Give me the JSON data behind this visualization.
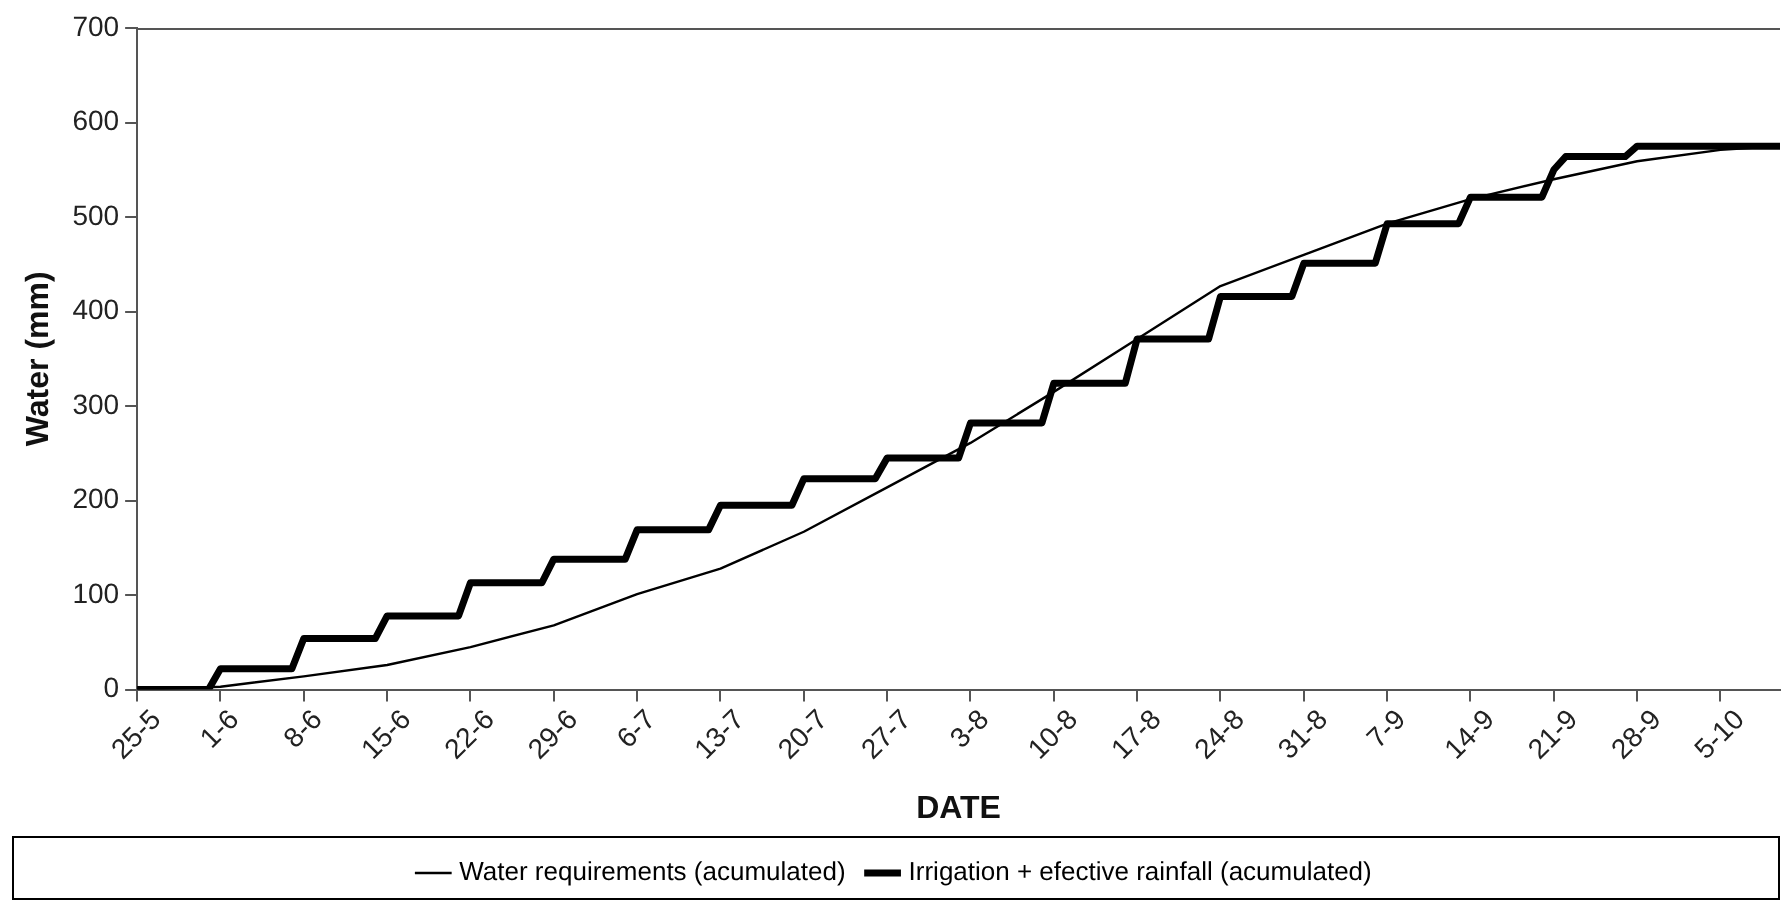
{
  "chart_data": {
    "type": "line",
    "xlabel": "DATE",
    "ylabel": "Water (mm)",
    "xlim": [
      "--05-25",
      "--10-10"
    ],
    "xticks": [
      {
        "value": "--05-25",
        "label": "25-5"
      },
      {
        "value": "--06-01",
        "label": "1-6"
      },
      {
        "value": "--06-08",
        "label": "8-6"
      },
      {
        "value": "--06-15",
        "label": "15-6"
      },
      {
        "value": "--06-22",
        "label": "22-6"
      },
      {
        "value": "--06-29",
        "label": "29-6"
      },
      {
        "value": "--07-06",
        "label": "6-7"
      },
      {
        "value": "--07-13",
        "label": "13-7"
      },
      {
        "value": "--07-20",
        "label": "20-7"
      },
      {
        "value": "--07-27",
        "label": "27-7"
      },
      {
        "value": "--08-03",
        "label": "3-8"
      },
      {
        "value": "--08-10",
        "label": "10-8"
      },
      {
        "value": "--08-17",
        "label": "17-8"
      },
      {
        "value": "--08-24",
        "label": "24-8"
      },
      {
        "value": "--08-31",
        "label": "31-8"
      },
      {
        "value": "--09-07",
        "label": "7-9"
      },
      {
        "value": "--09-14",
        "label": "14-9"
      },
      {
        "value": "--09-21",
        "label": "21-9"
      },
      {
        "value": "--09-28",
        "label": "28-9"
      },
      {
        "value": "--10-05",
        "label": "5-10"
      }
    ],
    "ylim": [
      0,
      700
    ],
    "yticks": [
      0,
      100,
      200,
      300,
      400,
      500,
      600,
      700
    ],
    "grid": false,
    "legend": "bottom",
    "marker": "none",
    "line_style": "solid",
    "series": [
      {
        "name": "Water requirements (acumulated)",
        "color": "#000000",
        "x": [
          "--05-25",
          "--06-01",
          "--06-08",
          "--06-15",
          "--06-22",
          "--06-29",
          "--07-06",
          "--07-13",
          "--07-20",
          "--07-27",
          "--08-03",
          "--08-10",
          "--08-17",
          "--08-24",
          "--08-31",
          "--09-07",
          "--09-14",
          "--09-21",
          "--09-28",
          "--10-05",
          "--10-10"
        ],
        "values": [
          0,
          3,
          14,
          26,
          45,
          68,
          101,
          128,
          167,
          214,
          261,
          315,
          371,
          427,
          460,
          493,
          519,
          540,
          559,
          571,
          575
        ]
      },
      {
        "name": "Irrigation + efective rainfall (acumulated)",
        "color": "#000000",
        "x": [
          "--05-25",
          "--05-31",
          "--06-01",
          "--06-07",
          "--06-08",
          "--06-14",
          "--06-15",
          "--06-21",
          "--06-22",
          "--06-28",
          "--06-29",
          "--07-05",
          "--07-06",
          "--07-12",
          "--07-13",
          "--07-19",
          "--07-20",
          "--07-26",
          "--07-27",
          "--08-02",
          "--08-03",
          "--08-09",
          "--08-10",
          "--08-16",
          "--08-17",
          "--08-23",
          "--08-24",
          "--08-30",
          "--08-31",
          "--09-06",
          "--09-07",
          "--09-13",
          "--09-14",
          "--09-20",
          "--09-21",
          "--09-22",
          "--09-27",
          "--09-28",
          "--10-10"
        ],
        "values": [
          0,
          0,
          22,
          22,
          54,
          54,
          78,
          78,
          113,
          113,
          138,
          138,
          169,
          169,
          195,
          195,
          223,
          223,
          245,
          245,
          282,
          282,
          324,
          324,
          371,
          371,
          416,
          416,
          451,
          451,
          493,
          493,
          521,
          521,
          550,
          564,
          564,
          575,
          575
        ]
      }
    ]
  }
}
